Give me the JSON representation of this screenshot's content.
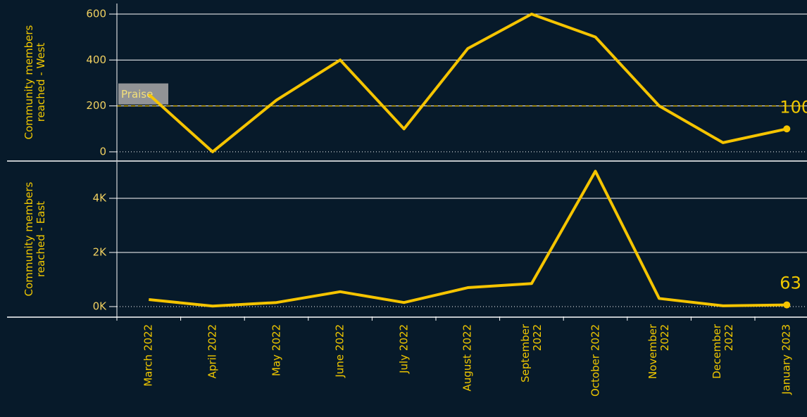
{
  "chart_data": [
    {
      "type": "line",
      "y_label": "Community members reached - West",
      "series": [
        {
          "name": "West",
          "color": "#f5c400",
          "values": [
            250,
            0,
            225,
            400,
            100,
            450,
            600,
            500,
            200,
            40,
            100
          ]
        }
      ],
      "ylim": [
        -37,
        646
      ],
      "yticks": [
        0,
        200,
        400,
        600
      ],
      "grid": true,
      "reference_line": {
        "value": 200,
        "label": "Praise",
        "color": "#c9a400"
      }
    },
    {
      "type": "line",
      "y_label": "Community members reached - East",
      "categories": [
        "March 2022",
        "April 2022",
        "May 2022",
        "June 2022",
        "July 2022",
        "August 2022",
        "September 2022",
        "October 2022",
        "November 2022",
        "December 2022",
        "January 2023"
      ],
      "series": [
        {
          "name": "East",
          "color": "#f5c400",
          "values": [
            260,
            20,
            150,
            550,
            150,
            700,
            850,
            5000,
            300,
            30,
            63
          ]
        }
      ],
      "ylim": [
        -364,
        5351
      ],
      "yticks": [
        {
          "value": 0,
          "label": "0K"
        },
        {
          "value": 2000,
          "label": "2K"
        },
        {
          "value": 4000,
          "label": "4K"
        }
      ],
      "grid": true
    }
  ]
}
